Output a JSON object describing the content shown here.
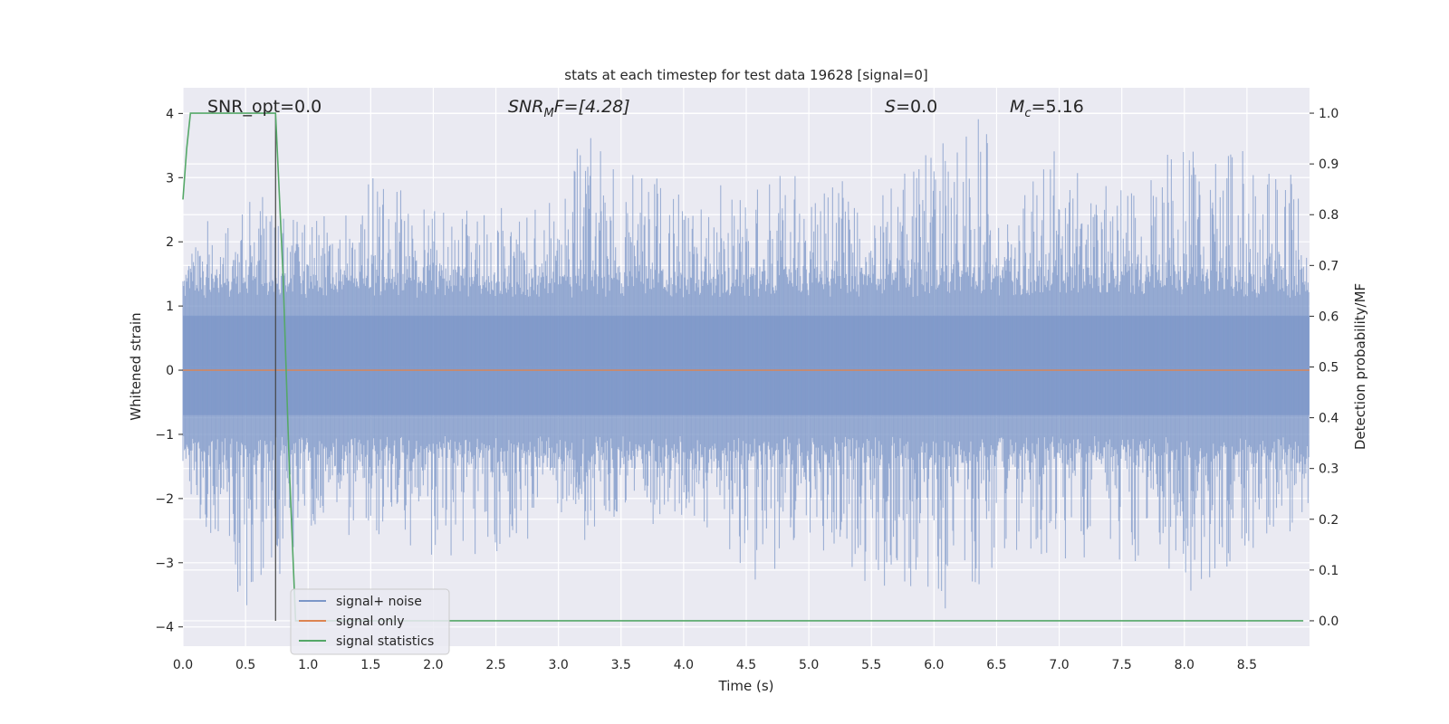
{
  "chart_data": {
    "type": "line",
    "title": "stats at each timestep for test data 19628 [signal=0]",
    "xlabel": "Time (s)",
    "ylabel_left": "Whitened strain",
    "ylabel_right": "Detection probability/MF",
    "xlim": [
      0.0,
      9.0
    ],
    "ylim_left": [
      -4.3,
      4.4
    ],
    "ylim_right": [
      -0.05,
      1.05
    ],
    "x_ticks": [
      "0.0",
      "0.5",
      "1.0",
      "1.5",
      "2.0",
      "2.5",
      "3.0",
      "3.5",
      "4.0",
      "4.5",
      "5.0",
      "5.5",
      "6.0",
      "6.5",
      "7.0",
      "7.5",
      "8.0",
      "8.5"
    ],
    "y_left_ticks": [
      "4",
      "3",
      "2",
      "1",
      "0",
      "−1",
      "−2",
      "−3",
      "−4"
    ],
    "y_right_ticks": [
      "1.0",
      "0.9",
      "0.8",
      "0.7",
      "0.6",
      "0.5",
      "0.4",
      "0.3",
      "0.2",
      "0.1",
      "0.0"
    ],
    "grid": true,
    "legend_position": "lower-left",
    "annotations": {
      "snr_opt": "SNR_opt=0.0",
      "snr_mf_main": "SNR",
      "snr_mf_sub": "M",
      "snr_mf_tail": "F=[4.28]",
      "s_main": "S",
      "s_tail": "=0.0",
      "mc_main": "M",
      "mc_sub": "c",
      "mc_tail": "=5.16"
    },
    "marker_line_x": 0.74,
    "series": [
      {
        "name": "signal+ noise",
        "color": "#7b96c8",
        "envelope": {
          "x": [
            0.0,
            0.5,
            1.0,
            1.5,
            2.0,
            2.5,
            3.0,
            3.2,
            3.5,
            4.0,
            4.5,
            5.0,
            5.5,
            6.0,
            6.3,
            6.5,
            7.0,
            7.5,
            8.0,
            8.5,
            9.0
          ],
          "y_max": [
            2.1,
            2.6,
            2.4,
            2.9,
            2.8,
            2.6,
            2.7,
            3.8,
            3.2,
            2.7,
            2.8,
            3.2,
            2.6,
            3.5,
            4.0,
            3.4,
            3.4,
            2.8,
            3.4,
            3.3,
            3.0
          ],
          "y_min": [
            -1.9,
            -3.8,
            -2.5,
            -2.6,
            -2.8,
            -2.9,
            -2.5,
            -2.6,
            -2.4,
            -2.3,
            -3.3,
            -2.8,
            -3.2,
            -3.6,
            -3.7,
            -3.0,
            -2.9,
            -3.1,
            -3.6,
            -2.9,
            -2.4
          ]
        }
      },
      {
        "name": "signal only",
        "color": "#dd8452",
        "x": [
          0.0,
          9.0
        ],
        "y": [
          0.0,
          0.0
        ]
      },
      {
        "name": "signal statistics",
        "color": "#55a868",
        "x": [
          0.0,
          0.03,
          0.06,
          0.1,
          0.2,
          0.3,
          0.5,
          0.7,
          0.74,
          0.8,
          0.85,
          0.9,
          1.0,
          2.0,
          4.0,
          6.0,
          8.0,
          8.95
        ],
        "y": [
          0.83,
          0.93,
          1.0,
          1.0,
          1.0,
          1.0,
          1.0,
          1.0,
          1.0,
          0.68,
          0.3,
          0.0,
          0.0,
          0.0,
          0.0,
          0.0,
          0.0,
          0.0
        ]
      }
    ]
  }
}
